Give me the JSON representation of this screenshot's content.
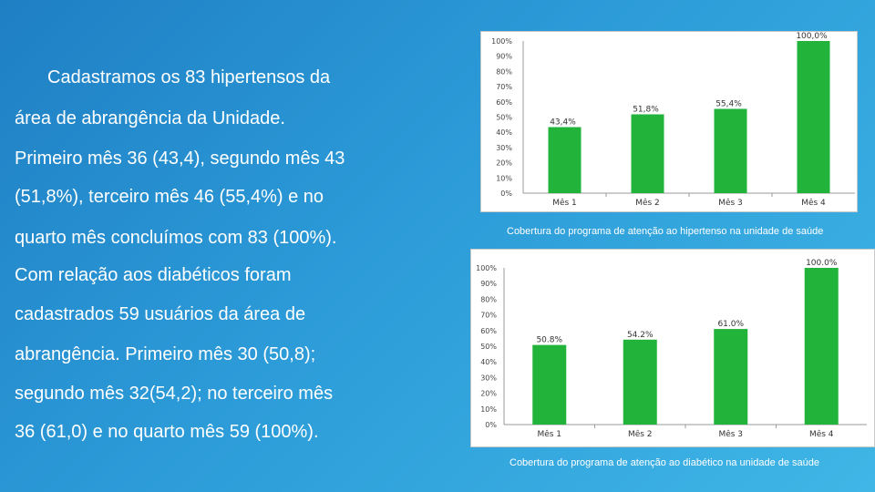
{
  "text": {
    "lines": [
      "Cadastramos os 83 hipertensos da",
      "área de abrangência da Unidade.",
      "Primeiro mês 36 (43,4), segundo mês 43",
      "(51,8%), terceiro mês 46 (55,4%) e no",
      "quarto mês concluímos com 83 (100%).",
      "Com relação aos diabéticos foram",
      "cadastrados 59 usuários da área de",
      "abrangência. Primeiro mês 30 (50,8);",
      "segundo mês 32(54,2); no terceiro mês",
      "36 (61,0) e no quarto mês 59 (100%)."
    ]
  },
  "colors": {
    "bar": "#22b33a",
    "text": "#ffffff"
  },
  "chart_data": [
    {
      "type": "bar",
      "title": "Cobertura do programa de atenção ao hipertenso na unidade de saúde",
      "categories": [
        "Mês 1",
        "Mês 2",
        "Mês 3",
        "Mês 4"
      ],
      "values": [
        43.4,
        51.8,
        55.4,
        100.0
      ],
      "data_labels": [
        "43,4%",
        "51,8%",
        "55,4%",
        "100,0%"
      ],
      "y_ticks": [
        "0%",
        "10%",
        "20%",
        "30%",
        "40%",
        "50%",
        "60%",
        "70%",
        "80%",
        "90%",
        "100%"
      ],
      "ylim": [
        0,
        100
      ],
      "grid": false
    },
    {
      "type": "bar",
      "title": "Cobertura do programa de atenção ao diabético na unidade de saúde",
      "categories": [
        "Mês 1",
        "Mês 2",
        "Mês 3",
        "Mês 4"
      ],
      "values": [
        50.8,
        54.2,
        61.0,
        100.0
      ],
      "data_labels": [
        "50.8%",
        "54.2%",
        "61.0%",
        "100.0%"
      ],
      "y_ticks": [
        "0%",
        "10%",
        "20%",
        "30%",
        "40%",
        "50%",
        "60%",
        "70%",
        "80%",
        "90%",
        "100%"
      ],
      "ylim": [
        0,
        100
      ],
      "grid": false
    }
  ]
}
